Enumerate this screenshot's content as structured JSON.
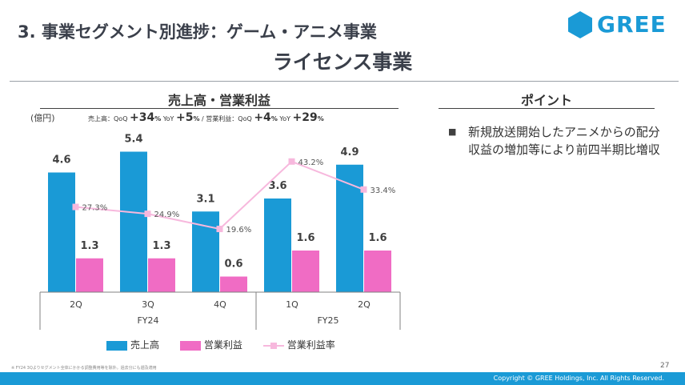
{
  "header": {
    "title_line1": "3. 事業セグメント別進捗：ゲーム・アニメ事業",
    "title_line2": "ライセンス事業",
    "logo_text": "GREE",
    "brand_color": "#1a9ad6"
  },
  "chart_panel": {
    "title": "売上高・営業利益",
    "unit": "(億円)",
    "growth": {
      "sales_label": "売上高：",
      "qoq_label": "QoQ",
      "sales_qoq": "+34",
      "yoy_label": "YoY",
      "sales_yoy": "+5",
      "separator": "/",
      "op_label": "営業利益：",
      "op_qoq": "+4",
      "op_yoy": "+29",
      "pct": "%"
    }
  },
  "point_panel": {
    "title": "ポイント",
    "bullet": "■",
    "text": "新規放送開始したアニメからの配分収益の増加等により前四半期比増収"
  },
  "chart_data": {
    "type": "bar",
    "categories": [
      "2Q",
      "3Q",
      "4Q",
      "1Q",
      "2Q"
    ],
    "groups": [
      {
        "label": "FY24",
        "count": 3
      },
      {
        "label": "FY25",
        "count": 2
      }
    ],
    "series": [
      {
        "name": "売上高",
        "kind": "bar",
        "color": "#1a9ad6",
        "values": [
          4.6,
          5.4,
          3.1,
          3.6,
          4.9
        ],
        "labels": [
          "4.6",
          "5.4",
          "3.1",
          "3.6",
          "4.9"
        ]
      },
      {
        "name": "営業利益",
        "kind": "bar",
        "color": "#f06cc4",
        "values": [
          1.3,
          1.3,
          0.6,
          1.6,
          1.6
        ],
        "labels": [
          "1.3",
          "1.3",
          "0.6",
          "1.6",
          "1.6"
        ]
      },
      {
        "name": "営業利益率",
        "kind": "line",
        "color": "#f7b8dd",
        "values": [
          27.3,
          24.9,
          19.6,
          43.2,
          33.4
        ],
        "labels": [
          "27.3%",
          "24.9%",
          "19.6%",
          "43.2%",
          "33.4%"
        ]
      }
    ],
    "ylabel": "(億円)",
    "legend_position": "bottom"
  },
  "footer": {
    "footnote": "※ FY24 3Qよりセグメント全体にかかる調整費用等を除外。過去分にも遡及適用",
    "page_number": "27",
    "copyright": "Copyright © GREE Holdings, Inc. All Rights Reserved."
  }
}
